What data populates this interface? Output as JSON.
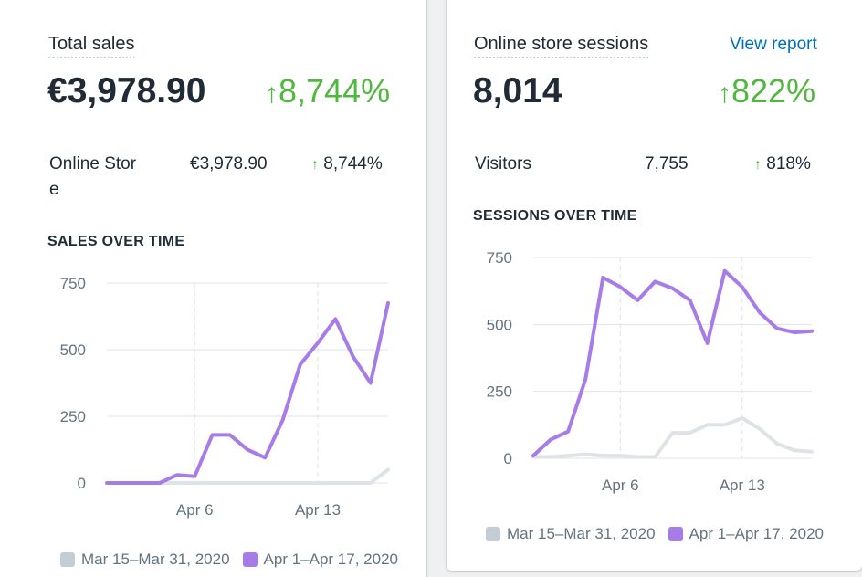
{
  "colors": {
    "current": "#a77ce6",
    "previous": "#dfe3e8",
    "positive": "#50b83c",
    "link": "#006fbb"
  },
  "sales_card": {
    "title": "Total sales",
    "value": "€3,978.90",
    "change": "8,744%",
    "change_icon": "arrow-up-icon",
    "breakdown": {
      "label_line1": "Online Stor",
      "label_line2": "e",
      "value": "€3,978.90",
      "change": "8,744%"
    },
    "chart_title": "SALES OVER TIME",
    "legend": [
      "Mar 15–Mar 31, 2020",
      "Apr 1–Apr 17, 2020"
    ]
  },
  "sessions_card": {
    "title": "Online store sessions",
    "link": "View report",
    "value": "8,014",
    "change": "822%",
    "change_icon": "arrow-up-icon",
    "breakdown": {
      "label": "Visitors",
      "value": "7,755",
      "change": "818%"
    },
    "chart_title": "SESSIONS OVER TIME",
    "legend": [
      "Mar 15–Mar 31, 2020",
      "Apr 1–Apr 17, 2020"
    ]
  },
  "chart_data": [
    {
      "type": "line",
      "title": "SALES OVER TIME",
      "y_ticks": [
        "0",
        "250",
        "500",
        "750"
      ],
      "ylim": [
        0,
        750
      ],
      "x_ticks": [
        {
          "label": "Apr 6",
          "index": 5
        },
        {
          "label": "Apr 13",
          "index": 12
        }
      ],
      "x": [
        "Apr 1",
        "Apr 2",
        "Apr 3",
        "Apr 4",
        "Apr 5",
        "Apr 6",
        "Apr 7",
        "Apr 8",
        "Apr 9",
        "Apr 10",
        "Apr 11",
        "Apr 12",
        "Apr 13",
        "Apr 14",
        "Apr 15",
        "Apr 16",
        "Apr 17"
      ],
      "series": [
        {
          "name": "Mar 15–Mar 31, 2020",
          "values": [
            0,
            0,
            0,
            0,
            0,
            0,
            0,
            0,
            0,
            0,
            0,
            0,
            0,
            0,
            0,
            0,
            50
          ]
        },
        {
          "name": "Apr 1–Apr 17, 2020",
          "values": [
            0,
            0,
            0,
            0,
            30,
            25,
            180,
            180,
            125,
            95,
            235,
            445,
            525,
            615,
            475,
            375,
            675
          ]
        }
      ],
      "grid": true,
      "legend": "bottom"
    },
    {
      "type": "line",
      "title": "SESSIONS OVER TIME",
      "y_ticks": [
        "0",
        "250",
        "500",
        "750"
      ],
      "ylim": [
        0,
        750
      ],
      "x_ticks": [
        {
          "label": "Apr 6",
          "index": 5
        },
        {
          "label": "Apr 13",
          "index": 12
        }
      ],
      "x": [
        "Apr 1",
        "Apr 2",
        "Apr 3",
        "Apr 4",
        "Apr 5",
        "Apr 6",
        "Apr 7",
        "Apr 8",
        "Apr 9",
        "Apr 10",
        "Apr 11",
        "Apr 12",
        "Apr 13",
        "Apr 14",
        "Apr 15",
        "Apr 16",
        "Apr 17"
      ],
      "series": [
        {
          "name": "Mar 15–Mar 31, 2020",
          "values": [
            5,
            5,
            10,
            15,
            10,
            10,
            5,
            5,
            95,
            95,
            125,
            125,
            150,
            110,
            55,
            30,
            25
          ]
        },
        {
          "name": "Apr 1–Apr 17, 2020",
          "values": [
            10,
            70,
            100,
            295,
            675,
            640,
            590,
            660,
            635,
            590,
            430,
            700,
            640,
            545,
            485,
            470,
            475
          ]
        }
      ],
      "grid": true,
      "legend": "bottom"
    }
  ]
}
